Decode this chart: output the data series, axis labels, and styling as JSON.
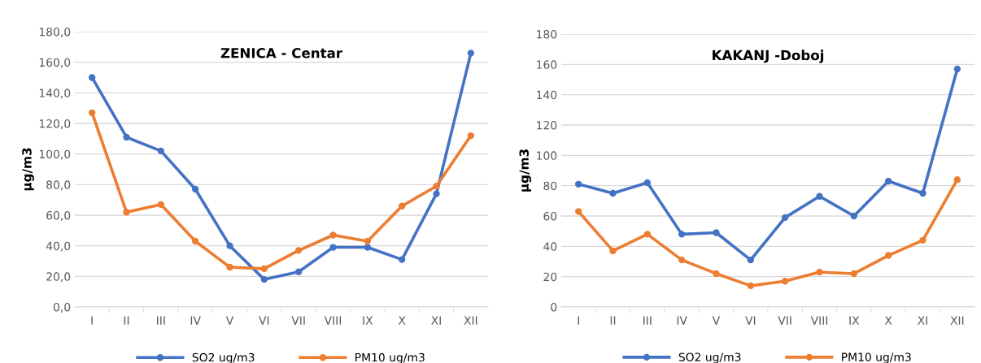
{
  "chart_data": [
    {
      "type": "line",
      "title": "ZENICA - Centar",
      "ylabel": "µg/m3",
      "categories": [
        "I",
        "II",
        "III",
        "IV",
        "V",
        "VI",
        "VII",
        "VIII",
        "IX",
        "X",
        "XI",
        "XII"
      ],
      "series": [
        {
          "name": "SO2 ug/m3",
          "color": "#4472c4",
          "values": [
            150,
            111,
            102,
            77,
            40,
            18,
            23,
            39,
            39,
            31,
            74,
            166
          ]
        },
        {
          "name": "PM10 ug/m3",
          "color": "#ed7d31",
          "values": [
            127,
            62,
            67,
            43,
            26,
            25,
            37,
            47,
            43,
            66,
            79,
            112
          ]
        }
      ],
      "ylim": [
        0,
        180
      ],
      "yticks": [
        {
          "value": 0,
          "label": "0,0"
        },
        {
          "value": 20,
          "label": "20,0"
        },
        {
          "value": 40,
          "label": "40,0"
        },
        {
          "value": 60,
          "label": "60,0"
        },
        {
          "value": 80,
          "label": "80,0"
        },
        {
          "value": 100,
          "label": "100,0"
        },
        {
          "value": 120,
          "label": "120,0"
        },
        {
          "value": 140,
          "label": "140,0"
        },
        {
          "value": 160,
          "label": "160,0"
        },
        {
          "value": 180,
          "label": "180,0"
        }
      ],
      "grid": "y",
      "legend": "bottom",
      "marker": "circle",
      "line_style": "solid"
    },
    {
      "type": "line",
      "title": "KAKANJ -Doboj",
      "ylabel": "µg/m3",
      "categories": [
        "I",
        "II",
        "III",
        "IV",
        "V",
        "VI",
        "VII",
        "VIII",
        "IX",
        "X",
        "XI",
        "XII"
      ],
      "series": [
        {
          "name": "SO2 ug/m3",
          "color": "#4472c4",
          "values": [
            81,
            75,
            82,
            48,
            49,
            31,
            59,
            73,
            60,
            83,
            75,
            157
          ]
        },
        {
          "name": "PM10 ug/m3",
          "color": "#ed7d31",
          "values": [
            63,
            37,
            48,
            31,
            22,
            14,
            17,
            23,
            22,
            34,
            44,
            84
          ]
        }
      ],
      "ylim": [
        0,
        180
      ],
      "yticks": [
        0,
        20,
        40,
        60,
        80,
        100,
        120,
        140,
        160,
        180
      ],
      "grid": "y",
      "legend": "bottom",
      "marker": "circle",
      "line_style": "solid"
    }
  ]
}
